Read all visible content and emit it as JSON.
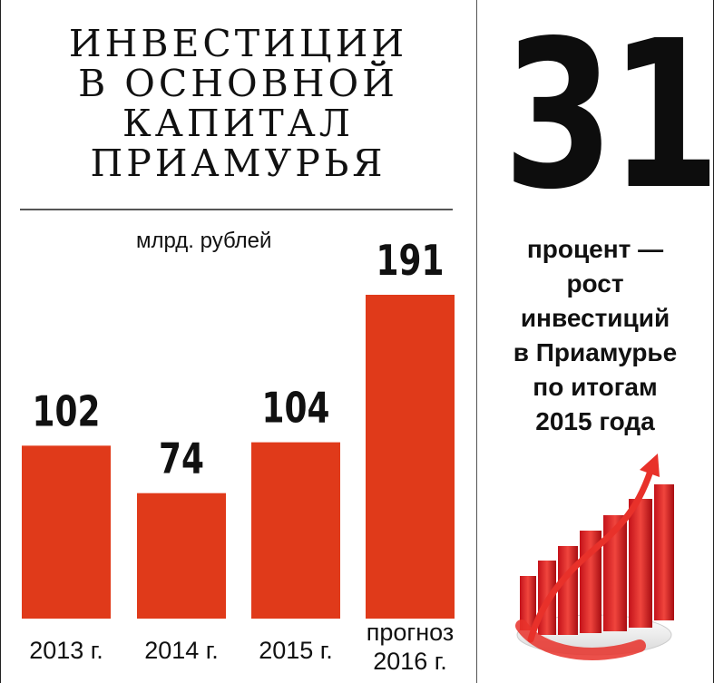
{
  "title": {
    "lines": [
      "ИНВЕСТИЦИИ",
      "В ОСНОВНОЙ",
      "КАПИТАЛ",
      "ПРИАМУРЬЯ"
    ]
  },
  "unit_label": "млрд. рублей",
  "chart_data": {
    "type": "bar",
    "title": "ИНВЕСТИЦИИ В ОСНОВНОЙ КАПИТАЛ ПРИАМУРЬЯ",
    "ylabel": "млрд. рублей",
    "categories": [
      "2013 г.",
      "2014 г.",
      "2015 г.",
      "прогноз 2016 г."
    ],
    "values": [
      102,
      74,
      104,
      191
    ],
    "value_labels": [
      "102",
      "74",
      "104",
      "191"
    ],
    "ylim": [
      0,
      191
    ],
    "grid": false,
    "bar_color": "#e03a1a"
  },
  "highlight": {
    "number": "31",
    "caption_lines": [
      "процент —",
      "рост",
      "инвестиций",
      "в Приамурье",
      "по итогам",
      "2015 года"
    ]
  },
  "icons": [
    "growth-chart-icon"
  ],
  "colors": {
    "accent": "#e03a1a",
    "text": "#111111"
  }
}
